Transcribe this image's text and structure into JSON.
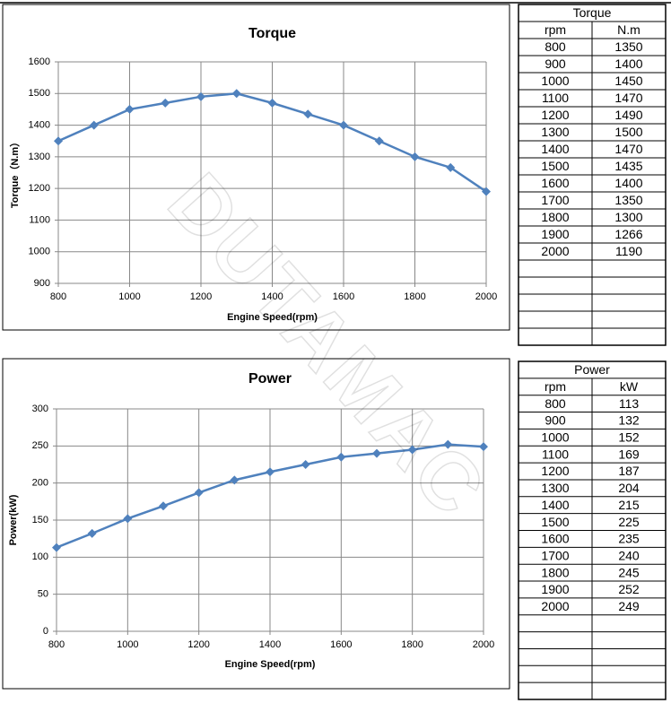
{
  "chart_data": [
    {
      "type": "line",
      "title": "Torque",
      "x_label": "Engine Speed(rpm)",
      "y_label": "Torque（N.m）",
      "x": [
        800,
        900,
        1000,
        1100,
        1200,
        1300,
        1400,
        1500,
        1600,
        1700,
        1800,
        1900,
        2000
      ],
      "series": [
        {
          "name": "N.m",
          "color": "#4f81bd",
          "values": [
            1350,
            1400,
            1450,
            1470,
            1490,
            1500,
            1470,
            1435,
            1400,
            1350,
            1300,
            1266,
            1190
          ]
        }
      ],
      "xlim": [
        800,
        2000
      ],
      "xticks": [
        800,
        1000,
        1200,
        1400,
        1600,
        1800,
        2000
      ],
      "ylim": [
        900,
        1600
      ],
      "yticks": [
        900,
        1000,
        1100,
        1200,
        1300,
        1400,
        1500,
        1600
      ],
      "grid": true
    },
    {
      "type": "line",
      "title": "Power",
      "x_label": "Engine Speed(rpm)",
      "y_label": "Power(kW)",
      "x": [
        800,
        900,
        1000,
        1100,
        1200,
        1300,
        1400,
        1500,
        1600,
        1700,
        1800,
        1900,
        2000
      ],
      "series": [
        {
          "name": "kW",
          "color": "#4f81bd",
          "values": [
            113,
            132,
            152,
            169,
            187,
            204,
            215,
            225,
            235,
            240,
            245,
            252,
            249
          ]
        }
      ],
      "xlim": [
        800,
        2000
      ],
      "xticks": [
        800,
        1000,
        1200,
        1400,
        1600,
        1800,
        2000
      ],
      "ylim": [
        0,
        300
      ],
      "yticks": [
        0,
        50,
        100,
        150,
        200,
        250,
        300
      ],
      "grid": true
    }
  ],
  "tables": [
    {
      "title": "Torque",
      "columns": [
        "rpm",
        "N.m"
      ]
    },
    {
      "title": "Power",
      "columns": [
        "rpm",
        "kW"
      ]
    }
  ],
  "watermark": "DUTAMAC"
}
